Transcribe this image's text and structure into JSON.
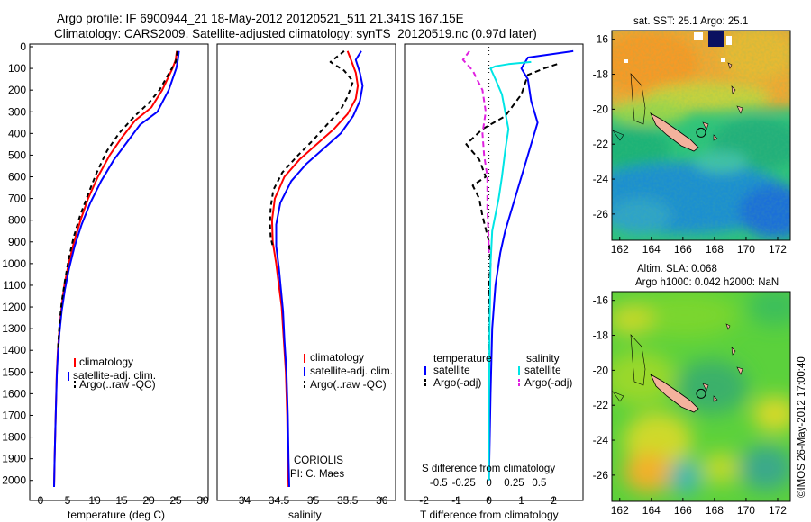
{
  "header": {
    "line1": "Argo profile: IF 6900944_21 18-May-2012 20120521_511 21.341S 167.15E",
    "line2": "Climatology: CARS2009. Satellite-adjusted climatology: synTS_20120519.nc (0.97d later)"
  },
  "colors": {
    "clim": "#ff0000",
    "sat": "#0000ff",
    "argo": "#000000",
    "cyan": "#00e5e5",
    "magenta": "#e020e0"
  },
  "chart_data": [
    {
      "type": "line",
      "name": "temperature-profile",
      "xlabel": "temperature (deg C)",
      "ylabel": "",
      "xlim": [
        -2,
        31
      ],
      "ylim": [
        2080,
        0
      ],
      "xticks": [
        0,
        5,
        10,
        15,
        20,
        25,
        30
      ],
      "xtick_labels": [
        "0",
        "5",
        "10",
        "15",
        "20",
        "25",
        "30"
      ],
      "yticks": [
        0,
        100,
        200,
        300,
        400,
        500,
        600,
        700,
        800,
        900,
        1000,
        1100,
        1200,
        1300,
        1400,
        1500,
        1600,
        1700,
        1800,
        1900,
        2000
      ],
      "ytick_labels": [
        "0",
        "100",
        "200",
        "300",
        "400",
        "500",
        "600",
        "700",
        "800",
        "900",
        "1000",
        "1100",
        "1200",
        "1300",
        "1400",
        "1500",
        "1600",
        "1700",
        "1800",
        "1900",
        "2000"
      ],
      "legend": [
        "climatology",
        "satellite-adj. clim.",
        "Argo(..raw -QC)"
      ],
      "series": [
        {
          "name": "climatology",
          "color": "#ff0000",
          "dash": "",
          "points": [
            [
              25.2,
              20
            ],
            [
              25,
              60
            ],
            [
              24.4,
              100
            ],
            [
              22.5,
              200
            ],
            [
              20.5,
              280
            ],
            [
              17.5,
              340
            ],
            [
              15,
              420
            ],
            [
              12.8,
              500
            ],
            [
              10.6,
              600
            ],
            [
              8.8,
              700
            ],
            [
              7.4,
              800
            ],
            [
              6.2,
              900
            ],
            [
              5.2,
              1000
            ],
            [
              4.4,
              1100
            ],
            [
              3.9,
              1200
            ],
            [
              3.5,
              1300
            ],
            [
              3.2,
              1400
            ],
            [
              3,
              1500
            ],
            [
              2.8,
              1700
            ],
            [
              2.6,
              1900
            ],
            [
              2.5,
              2030
            ]
          ]
        },
        {
          "name": "satellite-adj. clim.",
          "color": "#0000ff",
          "dash": "",
          "points": [
            [
              25.6,
              20
            ],
            [
              25.4,
              60
            ],
            [
              25.1,
              100
            ],
            [
              23.7,
              200
            ],
            [
              21.6,
              300
            ],
            [
              18.4,
              360
            ],
            [
              16,
              440
            ],
            [
              13.6,
              520
            ],
            [
              11.2,
              620
            ],
            [
              9.2,
              720
            ],
            [
              7.6,
              820
            ],
            [
              6.3,
              920
            ],
            [
              5.3,
              1020
            ],
            [
              4.5,
              1120
            ],
            [
              3.9,
              1220
            ],
            [
              3.5,
              1320
            ],
            [
              3.2,
              1420
            ],
            [
              3,
              1520
            ],
            [
              2.8,
              1700
            ],
            [
              2.6,
              1900
            ],
            [
              2.5,
              2030
            ]
          ]
        },
        {
          "name": "Argo(..raw -QC)",
          "color": "#000000",
          "dash": "5,4",
          "points": [
            [
              25.3,
              20
            ],
            [
              25,
              70
            ],
            [
              23.8,
              120
            ],
            [
              22,
              200
            ],
            [
              20,
              260
            ],
            [
              17.4,
              320
            ],
            [
              14.5,
              400
            ],
            [
              12.3,
              480
            ],
            [
              10.4,
              580
            ],
            [
              8.8,
              680
            ],
            [
              7.3,
              780
            ],
            [
              6.1,
              880
            ],
            [
              5.2,
              980
            ],
            [
              4.5,
              1080
            ],
            [
              3.9,
              1180
            ],
            [
              3.5,
              1280
            ],
            [
              3.2,
              1400
            ]
          ]
        }
      ]
    },
    {
      "type": "line",
      "name": "salinity-profile",
      "xlabel": "salinity",
      "xlim": [
        33.6,
        36.2
      ],
      "ylim": [
        2080,
        0
      ],
      "xticks": [
        34,
        34.5,
        35,
        35.5,
        36
      ],
      "xtick_labels": [
        "34",
        "34.5",
        "35",
        "35.5",
        "36"
      ],
      "legend": [
        "climatology",
        "satellite-adj. clim.",
        "Argo(..raw -QC)"
      ],
      "annotation": [
        "CORIOLIS",
        "PI: C. Maes"
      ],
      "series": [
        {
          "name": "climatology",
          "color": "#ff0000",
          "dash": "",
          "points": [
            [
              35.5,
              20
            ],
            [
              35.55,
              60
            ],
            [
              35.62,
              120
            ],
            [
              35.65,
              180
            ],
            [
              35.62,
              240
            ],
            [
              35.5,
              310
            ],
            [
              35.3,
              380
            ],
            [
              35.05,
              450
            ],
            [
              34.8,
              520
            ],
            [
              34.58,
              600
            ],
            [
              34.44,
              700
            ],
            [
              34.4,
              800
            ],
            [
              34.41,
              900
            ],
            [
              34.46,
              1000
            ],
            [
              34.5,
              1100
            ],
            [
              34.54,
              1200
            ],
            [
              34.57,
              1350
            ],
            [
              34.6,
              1500
            ],
            [
              34.62,
              1700
            ],
            [
              34.63,
              1900
            ],
            [
              34.64,
              2030
            ]
          ]
        },
        {
          "name": "satellite-adj. clim.",
          "color": "#0000ff",
          "dash": "",
          "points": [
            [
              35.7,
              20
            ],
            [
              35.62,
              60
            ],
            [
              35.68,
              120
            ],
            [
              35.72,
              180
            ],
            [
              35.68,
              250
            ],
            [
              35.58,
              320
            ],
            [
              35.4,
              400
            ],
            [
              35.15,
              470
            ],
            [
              34.9,
              540
            ],
            [
              34.68,
              620
            ],
            [
              34.52,
              720
            ],
            [
              34.46,
              820
            ],
            [
              34.46,
              920
            ],
            [
              34.5,
              1020
            ],
            [
              34.53,
              1120
            ],
            [
              34.56,
              1220
            ],
            [
              34.58,
              1350
            ],
            [
              34.61,
              1500
            ],
            [
              34.63,
              1700
            ],
            [
              34.64,
              1900
            ],
            [
              34.65,
              2030
            ]
          ]
        },
        {
          "name": "Argo(..raw -QC)",
          "color": "#000000",
          "dash": "5,4",
          "points": [
            [
              35.45,
              20
            ],
            [
              35.25,
              70
            ],
            [
              35.45,
              110
            ],
            [
              35.58,
              160
            ],
            [
              35.5,
              230
            ],
            [
              35.4,
              290
            ],
            [
              35.2,
              360
            ],
            [
              35,
              430
            ],
            [
              34.78,
              500
            ],
            [
              34.55,
              580
            ],
            [
              34.42,
              660
            ],
            [
              34.38,
              740
            ],
            [
              34.37,
              820
            ],
            [
              34.38,
              880
            ],
            [
              34.41,
              920
            ]
          ]
        }
      ]
    },
    {
      "type": "line",
      "name": "difference-profile",
      "xlabel": "T difference from climatology",
      "xlabel_top": "S difference from climatology",
      "xlim": [
        -2.6,
        2.9
      ],
      "ylim": [
        2080,
        0
      ],
      "xticks": [
        -2,
        -1,
        0,
        1,
        2
      ],
      "xtick_labels": [
        "-2",
        "-1",
        "0",
        "1",
        "2"
      ],
      "sticks": [
        -0.5,
        -0.25,
        0,
        0.25,
        0.5
      ],
      "stick_labels": [
        "-0.5",
        "-0.25",
        "0",
        "0.25",
        "0.5"
      ],
      "legend_headers": [
        "temperature",
        "salinity"
      ],
      "legend": [
        "satellite",
        "Argo(-adj)",
        "satellite",
        "Argo(-adj)"
      ],
      "series": [
        {
          "name": "T satellite",
          "color": "#0000ff",
          "dash": "",
          "points": [
            [
              2.6,
              20
            ],
            [
              1.2,
              50
            ],
            [
              1,
              100
            ],
            [
              1.2,
              150
            ],
            [
              1.3,
              250
            ],
            [
              1.5,
              350
            ],
            [
              1.3,
              450
            ],
            [
              1.1,
              550
            ],
            [
              0.9,
              650
            ],
            [
              0.7,
              750
            ],
            [
              0.5,
              850
            ],
            [
              0.35,
              950
            ],
            [
              0.2,
              1100
            ],
            [
              0.1,
              1300
            ],
            [
              0.05,
              1600
            ],
            [
              0,
              2000
            ]
          ]
        },
        {
          "name": "T Argo(-adj)",
          "color": "#000000",
          "dash": "6,4",
          "points": [
            [
              2.1,
              80
            ],
            [
              1.7,
              100
            ],
            [
              1.2,
              130
            ],
            [
              1.0,
              220
            ],
            [
              0.5,
              320
            ],
            [
              -0.2,
              380
            ],
            [
              -0.7,
              450
            ],
            [
              -0.3,
              520
            ],
            [
              -0.1,
              600
            ],
            [
              -0.5,
              640
            ],
            [
              -0.3,
              700
            ],
            [
              -0.2,
              780
            ],
            [
              0,
              900
            ],
            [
              0.05,
              1000
            ],
            [
              0,
              1100
            ],
            [
              0,
              1400
            ]
          ]
        },
        {
          "name": "S satellite",
          "color": "#00e5e5",
          "dash": "",
          "points": [
            [
              1.3,
              70
            ],
            [
              0.6,
              80
            ],
            [
              0.2,
              90
            ],
            [
              0.05,
              100
            ],
            [
              0.2,
              150
            ],
            [
              0.4,
              220
            ],
            [
              0.5,
              300
            ],
            [
              0.6,
              380
            ],
            [
              0.5,
              480
            ],
            [
              0.4,
              600
            ],
            [
              0.3,
              700
            ],
            [
              0.1,
              850
            ],
            [
              0.05,
              1000
            ],
            [
              0.02,
              1300
            ],
            [
              0,
              1700
            ],
            [
              0,
              2000
            ]
          ]
        },
        {
          "name": "S Argo(-adj)",
          "color": "#e020e0",
          "dash": "6,4",
          "points": [
            [
              -0.6,
              20
            ],
            [
              -0.8,
              60
            ],
            [
              -0.5,
              110
            ],
            [
              -0.2,
              200
            ],
            [
              -0.1,
              300
            ],
            [
              -0.2,
              400
            ],
            [
              -0.15,
              500
            ],
            [
              -0.05,
              600
            ],
            [
              -0.05,
              750
            ],
            [
              -0.02,
              850
            ],
            [
              0,
              950
            ]
          ]
        }
      ]
    },
    {
      "type": "heatmap",
      "name": "sst-map",
      "title": "sat. SST: 25.1 Argo: 25.1",
      "lon_range": [
        161.5,
        172.8
      ],
      "lat_range": [
        -27.5,
        -15.5
      ],
      "xticks": [
        162,
        164,
        166,
        168,
        170,
        172
      ],
      "xtick_labels": [
        "162",
        "164",
        "166",
        "168",
        "170",
        "172"
      ],
      "yticks": [
        -16,
        -18,
        -20,
        -22,
        -24,
        -26
      ],
      "ytick_labels": [
        "-16",
        "-18",
        "-20",
        "-22",
        "-24",
        "-26"
      ],
      "argo_position": [
        167.15,
        -21.341
      ]
    },
    {
      "type": "heatmap",
      "name": "sla-map",
      "title": "Altim. SLA: 0.068",
      "subtitle": "Argo h1000: 0.042 h2000: NaN",
      "lon_range": [
        161.5,
        172.8
      ],
      "lat_range": [
        -27.5,
        -15.5
      ],
      "xticks": [
        162,
        164,
        166,
        168,
        170,
        172
      ],
      "xtick_labels": [
        "162",
        "164",
        "166",
        "168",
        "170",
        "172"
      ],
      "yticks": [
        -16,
        -18,
        -20,
        -22,
        -24,
        -26
      ],
      "ytick_labels": [
        "-16",
        "-18",
        "-20",
        "-22",
        "-24",
        "-26"
      ],
      "argo_position": [
        167.15,
        -21.341
      ]
    }
  ],
  "footer": {
    "stamp": "©IMOS 26-May-2012 17:00:40"
  }
}
